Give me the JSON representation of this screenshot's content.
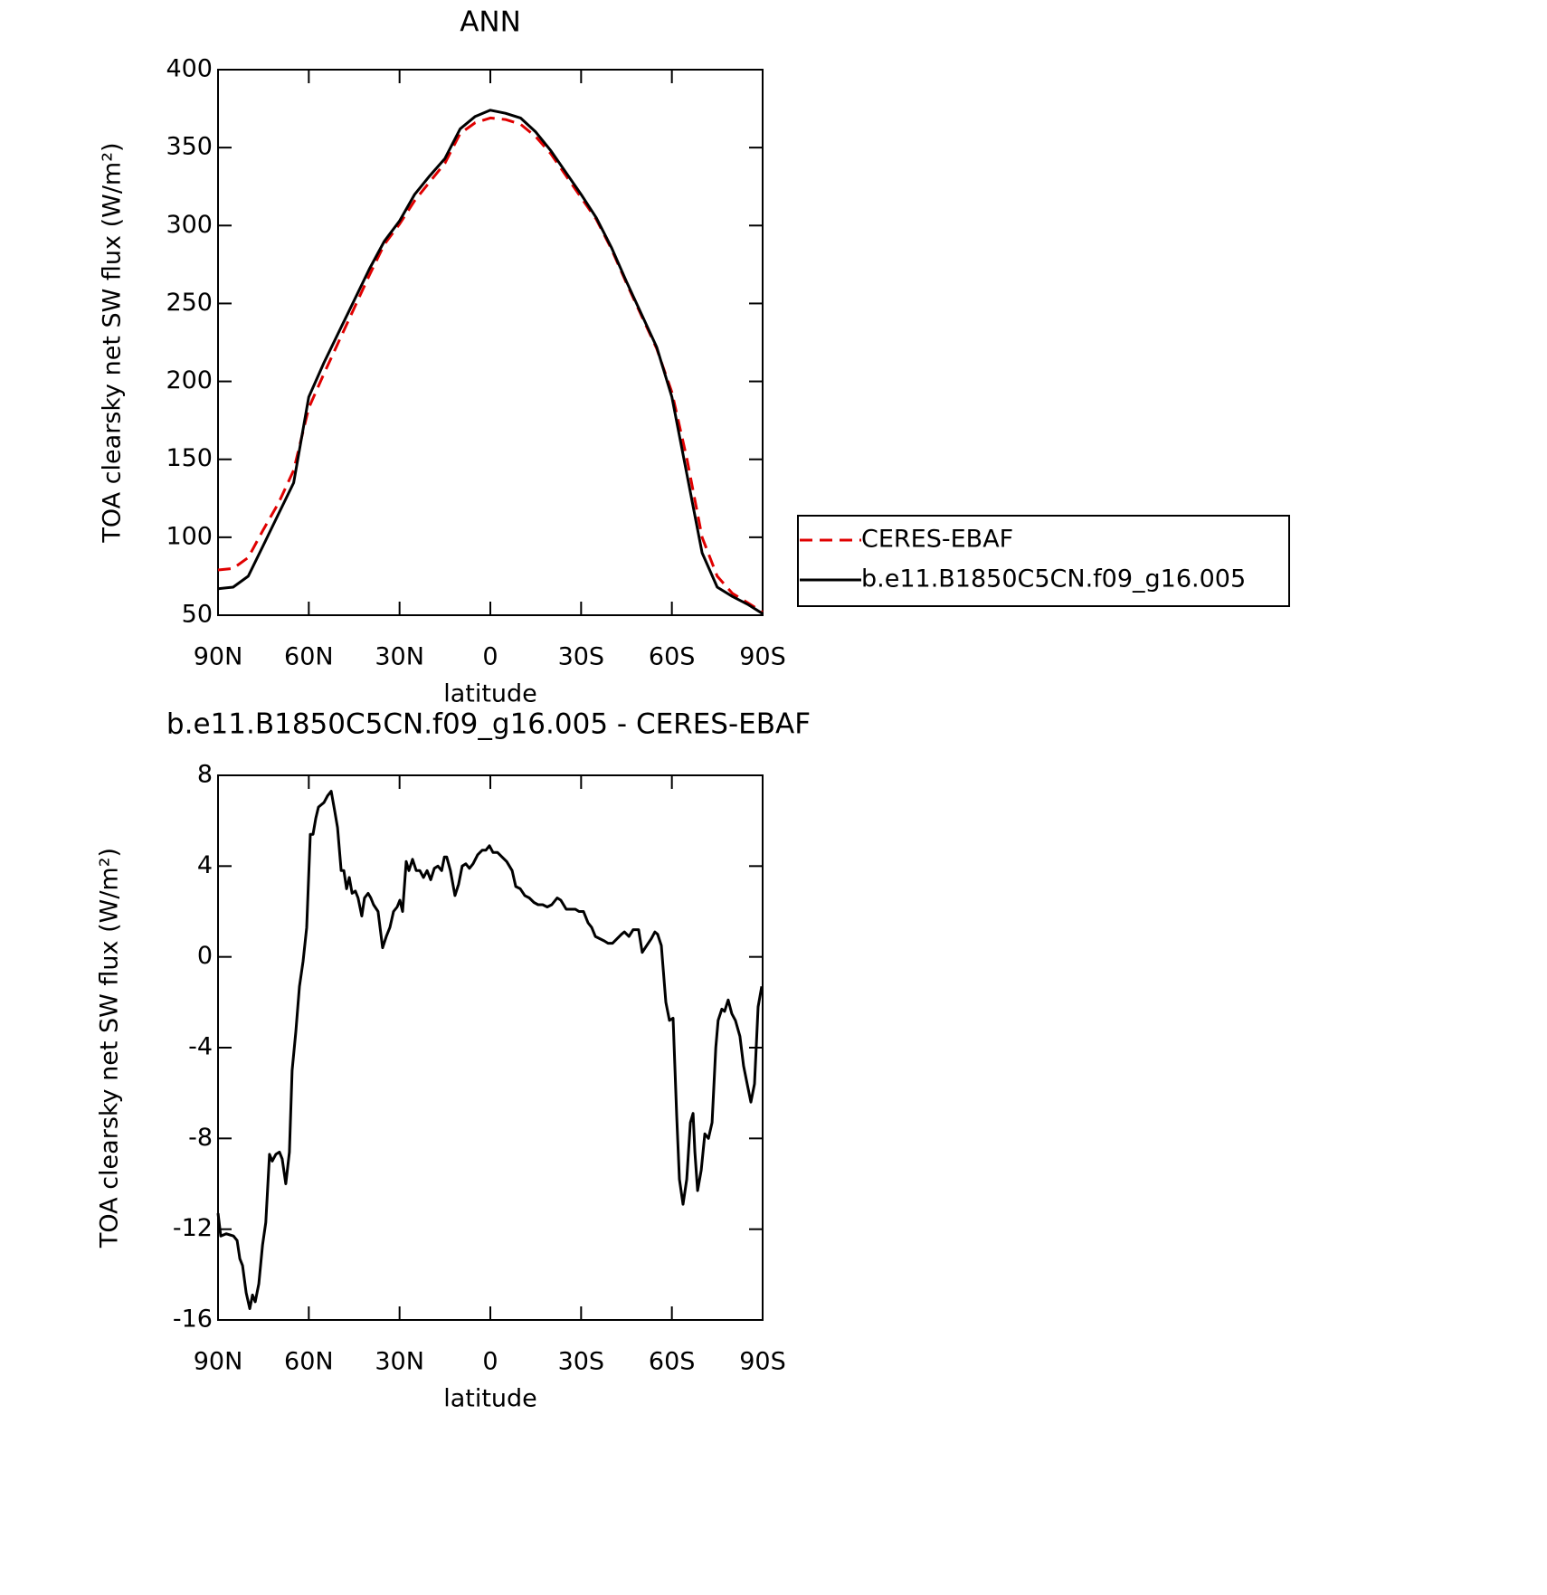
{
  "chart_data": [
    {
      "type": "line",
      "title": "ANN",
      "xlabel": "latitude",
      "ylabel": "TOA clearsky net SW flux (W/m²)",
      "x": [
        90,
        85,
        80,
        75,
        70,
        65,
        60,
        55,
        50,
        45,
        40,
        35,
        30,
        25,
        20,
        15,
        10,
        5,
        0,
        -5,
        -10,
        -15,
        -20,
        -25,
        -30,
        -35,
        -40,
        -45,
        -50,
        -55,
        -60,
        -65,
        -70,
        -75,
        -80,
        -85,
        -90
      ],
      "series": [
        {
          "name": "CERES-EBAF",
          "color": "#e00000",
          "dash": true,
          "values": [
            79,
            80,
            87,
            105,
            122,
            143,
            183,
            205,
            226,
            247,
            268,
            288,
            301,
            316,
            328,
            340,
            359,
            366,
            369,
            368,
            365,
            357,
            346,
            332,
            318,
            304,
            285,
            263,
            242,
            221,
            193,
            150,
            100,
            75,
            64,
            58,
            52
          ]
        },
        {
          "name": "b.e11.B1850C5CN.f09_g16.005",
          "color": "#000000",
          "dash": false,
          "values": [
            67,
            68,
            75,
            95,
            115,
            135,
            190,
            212,
            232,
            252,
            272,
            290,
            303,
            320,
            332,
            343,
            362,
            370,
            374,
            372,
            369,
            360,
            348,
            334,
            320,
            305,
            286,
            264,
            243,
            222,
            190,
            140,
            90,
            68,
            62,
            57,
            51
          ]
        }
      ],
      "xlim": [
        90,
        -90
      ],
      "xticks": [
        {
          "value": 90,
          "label": "90N"
        },
        {
          "value": 60,
          "label": "60N"
        },
        {
          "value": 30,
          "label": "30N"
        },
        0,
        {
          "value": -30,
          "label": "30S"
        },
        {
          "value": -60,
          "label": "60S"
        },
        {
          "value": -90,
          "label": "90S"
        }
      ],
      "ylim": [
        50,
        400
      ],
      "yticks": [
        50,
        100,
        150,
        200,
        250,
        300,
        350,
        400
      ],
      "legend": "right"
    },
    {
      "type": "line",
      "title": "b.e11.B1850C5CN.f09_g16.005 - CERES-EBAF",
      "xlabel": "latitude",
      "ylabel": "TOA clearsky net SW flux (W/m²)",
      "x": [
        90.0,
        89.1,
        87.3,
        84.9,
        83.7,
        82.8,
        81.9,
        80.7,
        79.5,
        78.6,
        77.7,
        76.5,
        75.3,
        74.2,
        73.0,
        72.1,
        70.9,
        69.7,
        68.8,
        67.6,
        66.4,
        65.5,
        64.3,
        63.1,
        61.9,
        60.7,
        59.5,
        58.6,
        57.7,
        56.8,
        55.9,
        55.0,
        53.8,
        52.6,
        51.4,
        50.5,
        49.3,
        48.4,
        47.5,
        46.6,
        45.7,
        44.6,
        43.7,
        42.5,
        41.6,
        40.4,
        39.5,
        38.6,
        37.1,
        35.6,
        34.4,
        33.2,
        32.0,
        30.8,
        29.9,
        29.0,
        27.8,
        26.9,
        25.7,
        24.5,
        23.3,
        22.1,
        20.9,
        19.7,
        18.5,
        17.3,
        16.1,
        15.2,
        14.4,
        13.2,
        11.7,
        10.5,
        9.3,
        8.1,
        6.9,
        5.7,
        4.2,
        2.7,
        1.5,
        0.3,
        -0.9,
        -2.4,
        -3.9,
        -5.4,
        -7.2,
        -8.4,
        -9.9,
        -11.4,
        -12.9,
        -14.4,
        -15.8,
        -17.3,
        -18.8,
        -20.3,
        -22.1,
        -23.3,
        -25.1,
        -26.9,
        -28.1,
        -29.3,
        -30.8,
        -32.3,
        -33.5,
        -34.7,
        -36.2,
        -37.7,
        -38.9,
        -40.4,
        -41.9,
        -43.4,
        -44.3,
        -45.8,
        -47.2,
        -49.0,
        -50.2,
        -51.7,
        -53.2,
        -54.4,
        -55.3,
        -56.5,
        -58.0,
        -59.2,
        -60.4,
        -61.6,
        -62.5,
        -63.7,
        -64.9,
        -66.1,
        -67.0,
        -67.6,
        -68.5,
        -69.7,
        -70.9,
        -72.1,
        -73.3,
        -74.5,
        -75.3,
        -76.5,
        -77.4,
        -78.6,
        -79.8,
        -81.0,
        -82.5,
        -83.7,
        -84.9,
        -86.1,
        -87.3,
        -88.5,
        -89.7
      ],
      "series": [
        {
          "color": "#000000",
          "dash": false,
          "values": [
            -11.3,
            -12.3,
            -12.2,
            -12.3,
            -12.5,
            -13.3,
            -13.6,
            -14.8,
            -15.5,
            -14.9,
            -15.2,
            -14.4,
            -12.7,
            -11.7,
            -8.7,
            -9.0,
            -8.7,
            -8.6,
            -8.9,
            -10.0,
            -8.6,
            -5.0,
            -3.3,
            -1.3,
            -0.2,
            1.3,
            5.4,
            5.4,
            6.1,
            6.6,
            6.7,
            6.8,
            7.1,
            7.3,
            6.4,
            5.7,
            3.8,
            3.8,
            3.0,
            3.5,
            2.8,
            2.9,
            2.6,
            1.8,
            2.6,
            2.8,
            2.6,
            2.3,
            2.0,
            0.4,
            0.9,
            1.3,
            2.0,
            2.2,
            2.5,
            2.0,
            4.2,
            3.8,
            4.3,
            3.8,
            3.8,
            3.5,
            3.8,
            3.4,
            3.9,
            4.0,
            3.8,
            4.4,
            4.4,
            3.8,
            2.7,
            3.2,
            4.0,
            4.1,
            3.9,
            4.1,
            4.5,
            4.7,
            4.7,
            4.9,
            4.6,
            4.6,
            4.4,
            4.2,
            3.8,
            3.1,
            3.0,
            2.7,
            2.6,
            2.4,
            2.3,
            2.3,
            2.2,
            2.3,
            2.6,
            2.5,
            2.1,
            2.1,
            2.1,
            2.0,
            2.0,
            1.5,
            1.3,
            0.9,
            0.8,
            0.7,
            0.6,
            0.6,
            0.8,
            1.0,
            1.1,
            0.9,
            1.2,
            1.2,
            0.2,
            0.5,
            0.8,
            1.1,
            1.0,
            0.5,
            -2.0,
            -2.8,
            -2.7,
            -7.0,
            -9.8,
            -10.9,
            -9.8,
            -7.3,
            -6.9,
            -8.6,
            -10.3,
            -9.4,
            -7.8,
            -8.0,
            -7.3,
            -4.0,
            -2.8,
            -2.3,
            -2.4,
            -1.9,
            -2.5,
            -2.8,
            -3.5,
            -4.8,
            -5.6,
            -6.4,
            -5.6,
            -2.2,
            -1.3
          ]
        }
      ],
      "xlim": [
        90,
        -90
      ],
      "xticks": [
        {
          "value": 90,
          "label": "90N"
        },
        {
          "value": 60,
          "label": "60N"
        },
        {
          "value": 30,
          "label": "30N"
        },
        0,
        {
          "value": -30,
          "label": "30S"
        },
        {
          "value": -60,
          "label": "60S"
        },
        {
          "value": -90,
          "label": "90S"
        }
      ],
      "ylim": [
        -16,
        8
      ],
      "yticks": [
        -16,
        -12,
        -8,
        -4,
        0,
        4,
        8
      ]
    }
  ]
}
